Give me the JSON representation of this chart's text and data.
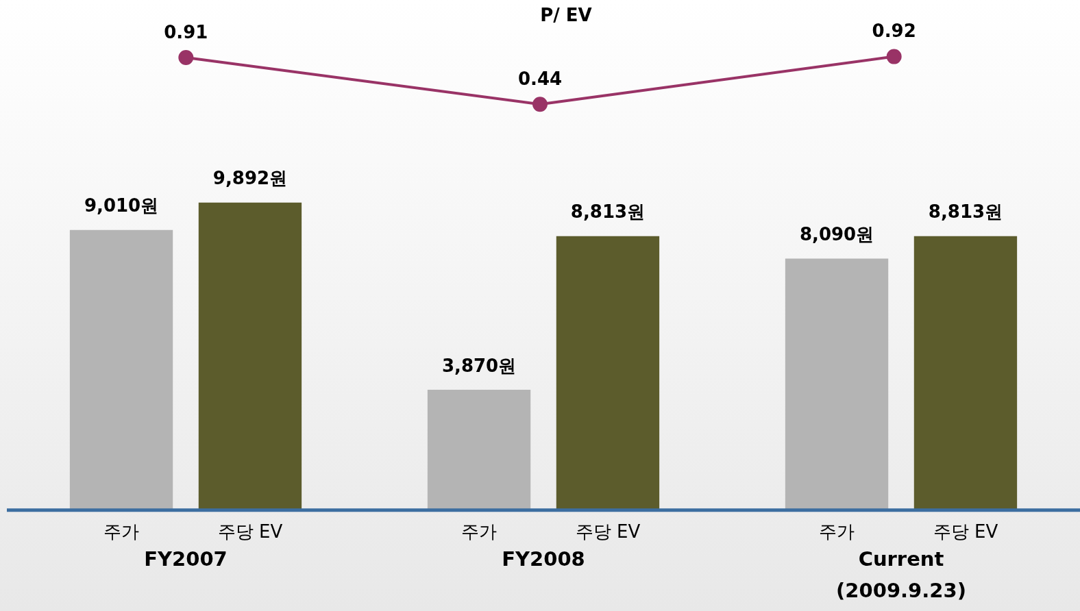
{
  "chart_data": [
    {
      "type": "line",
      "title": "P/ EV",
      "categories": [
        null,
        null,
        null
      ],
      "tick_labels": false,
      "series": [
        {
          "color": "#993366",
          "values": [
            0.91,
            0.44,
            0.92
          ],
          "value_labels": [
            "0.91",
            "0.44",
            "0.92"
          ]
        }
      ],
      "marker": "circle",
      "grid": false,
      "legend": false
    },
    {
      "type": "bar",
      "categories": [
        "FY2007",
        "FY2008",
        "Current\n(2009.9.23)"
      ],
      "tick_labels": "x",
      "series": [
        {
          "name": "주가",
          "color": "#b4b4b4",
          "values": [
            9010,
            3870,
            8090
          ],
          "value_labels": [
            "9,010원",
            "3,870원",
            "8,090원"
          ]
        },
        {
          "name": "주당 EV",
          "color": "#5c5c2c",
          "values": [
            9892,
            8813,
            8813
          ],
          "value_labels": [
            "9,892원",
            "8,813원",
            "8,813원"
          ]
        }
      ],
      "grid": false,
      "legend": false
    }
  ]
}
